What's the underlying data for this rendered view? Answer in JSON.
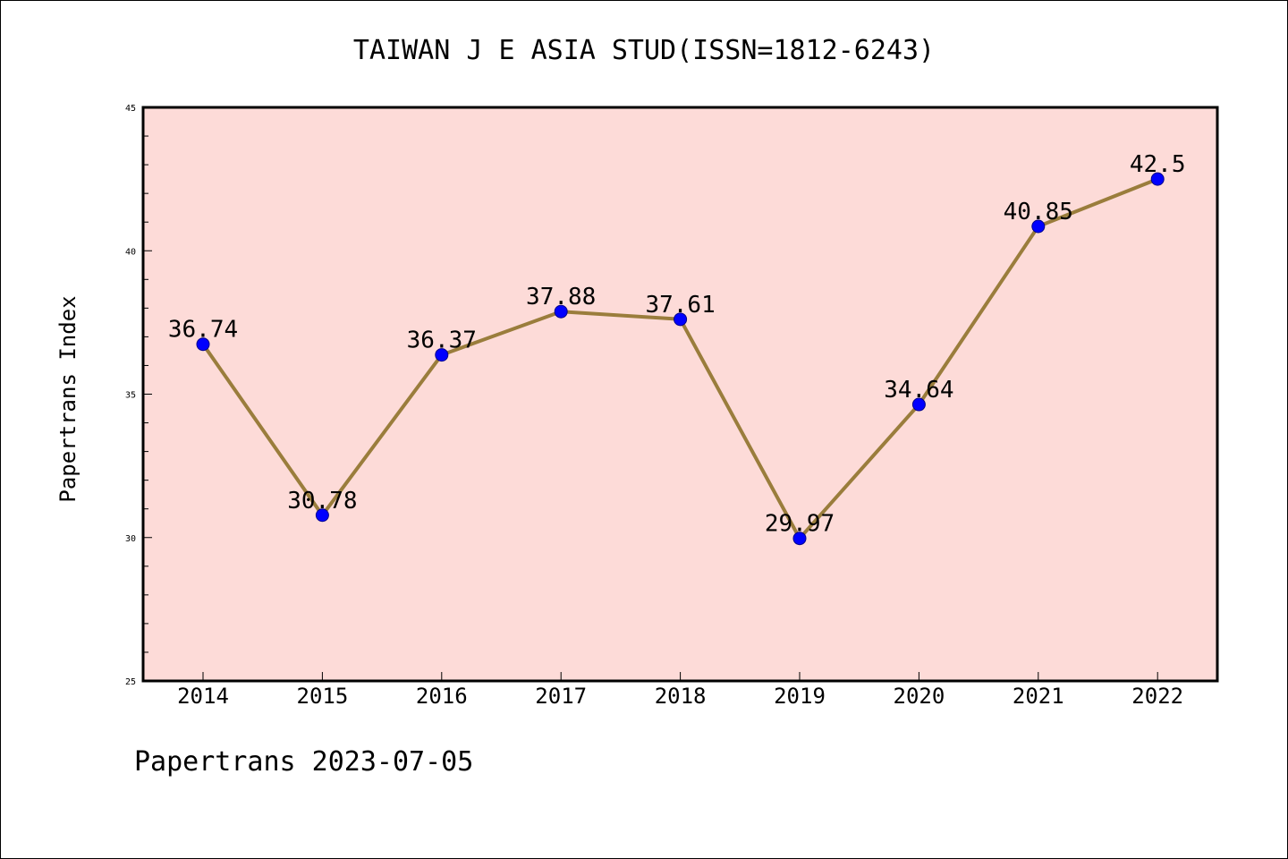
{
  "chart_data": {
    "type": "line",
    "title": "TAIWAN J E ASIA STUD(ISSN=1812-6243)",
    "ylabel": "Papertrans Index",
    "xlabel": "",
    "categories": [
      "2014",
      "2015",
      "2016",
      "2017",
      "2018",
      "2019",
      "2020",
      "2021",
      "2022"
    ],
    "values": [
      36.74,
      30.78,
      36.37,
      37.88,
      37.61,
      29.97,
      34.64,
      40.85,
      42.5
    ],
    "value_labels": [
      "36.74",
      "30.78",
      "36.37",
      "37.88",
      "37.61",
      "29.97",
      "34.64",
      "40.85",
      "42.5"
    ],
    "ylim": [
      25,
      45
    ],
    "yticks": [
      "25",
      "30",
      "35",
      "40",
      "45"
    ],
    "grid": false,
    "colors": {
      "plot_background": "#fddbd8",
      "line": "#9a7d3c",
      "marker": "#0000ff"
    }
  },
  "footer": {
    "text": "Papertrans 2023-07-05"
  }
}
